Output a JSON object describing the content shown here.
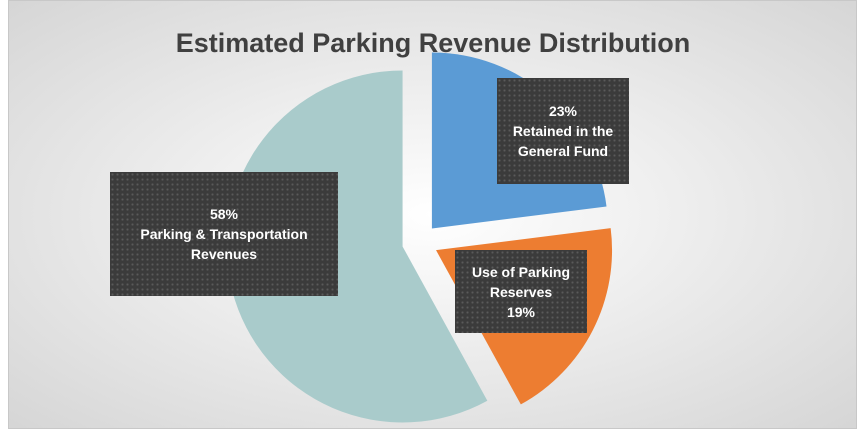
{
  "chart_data": {
    "type": "pie",
    "title": "Estimated Parking Revenue Distribution",
    "categories": [
      "Retained in the General Fund",
      "Use of Parking Reserves",
      "Parking & Transportation Revenues"
    ],
    "values": [
      23,
      19,
      58
    ],
    "value_labels": [
      "23%",
      "19%",
      "58%"
    ],
    "colors": [
      "#5b9bd5",
      "#ed7d31",
      "#a9cbcb"
    ]
  }
}
